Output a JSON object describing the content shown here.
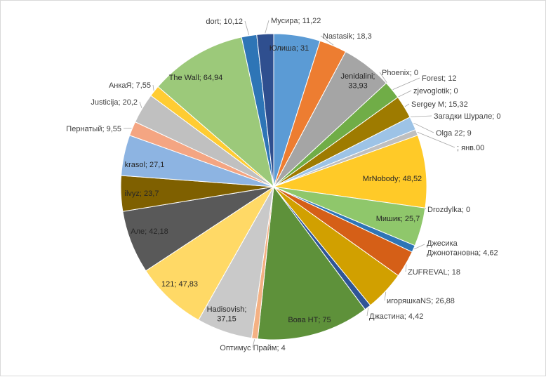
{
  "chart_data": {
    "type": "pie",
    "title": "",
    "start_angle_deg": 0,
    "direction": "clockwise",
    "slices": [
      {
        "name": "Юлиша",
        "value": 31,
        "label": "Юлиша; 31",
        "color": "#5b9bd5",
        "label_pos": "inside"
      },
      {
        "name": "Nastasik",
        "value": 18.3,
        "label": "Nastasik; 18,3",
        "color": "#ed7d31",
        "label_pos": "outside"
      },
      {
        "name": "Jenidalini",
        "value": 33.93,
        "label": "Jenidalini;\n33,93",
        "color": "#a5a5a5",
        "label_pos": "inside"
      },
      {
        "name": "Phoenix",
        "value": 0,
        "label": "Phoenix; 0",
        "color": "#ffc000",
        "label_pos": "outside"
      },
      {
        "name": "Forest",
        "value": 12,
        "label": "Forest; 12",
        "color": "#70ad47",
        "label_pos": "outside"
      },
      {
        "name": "zjevoglotik",
        "value": 0,
        "label": "zjevoglotik; 0",
        "color": "#4472c4",
        "label_pos": "outside"
      },
      {
        "name": "Sergey M",
        "value": 15.32,
        "label": "Sergey M; 15,32",
        "color": "#9e7b00",
        "label_pos": "outside"
      },
      {
        "name": "Загадки Шурале",
        "value": 0,
        "label": "Загадки Шурале; 0",
        "color": "#264478",
        "label_pos": "outside"
      },
      {
        "name": "Olga 22",
        "value": 9,
        "label": "Olga 22; 9",
        "color": "#9dc3e6",
        "label_pos": "outside"
      },
      {
        "name": "",
        "value": 4,
        "label": "; янв.00",
        "color": "#bfbfbf",
        "label_pos": "outside"
      },
      {
        "name": "MrNobody",
        "value": 48.52,
        "label": "MrNobody; 48,52",
        "color": "#ffca28",
        "label_pos": "inside"
      },
      {
        "name": "Drozdylka",
        "value": 0,
        "label": "Drozdylka; 0",
        "color": "#5b9bd5",
        "label_pos": "outside"
      },
      {
        "name": "Мишик",
        "value": 25.7,
        "label": "Мишик; 25,7",
        "color": "#8fc76b",
        "label_pos": "inside"
      },
      {
        "name": "Джесика Джонотановна",
        "value": 4.62,
        "label": "Джесика\nДжонотановна; 4,62",
        "color": "#2e75b6",
        "label_pos": "outside"
      },
      {
        "name": "ZUFREVAL",
        "value": 18,
        "label": "ZUFREVAL; 18",
        "color": "#d55f17",
        "label_pos": "outside"
      },
      {
        "name": "игоряшкаNS",
        "value": 26.88,
        "label": "игоряшкаNS; 26,88",
        "color": "#d1a000",
        "label_pos": "outside"
      },
      {
        "name": "Джастина",
        "value": 4.42,
        "label": "Джастина; 4,42",
        "color": "#2f5597",
        "label_pos": "outside"
      },
      {
        "name": "Вова НТ",
        "value": 75,
        "label": "Вова НТ; 75",
        "color": "#5e913a",
        "label_pos": "inside"
      },
      {
        "name": "Оптимус Прайм",
        "value": 4,
        "label": "Оптимус Прайм; 4",
        "color": "#f4b183",
        "label_pos": "outside"
      },
      {
        "name": "Hadisovish",
        "value": 37.15,
        "label": "Hadisovish;\n37,15",
        "color": "#c9c9c9",
        "label_pos": "inside"
      },
      {
        "name": "121",
        "value": 47.83,
        "label": "121; 47,83",
        "color": "#ffd966",
        "label_pos": "inside"
      },
      {
        "name": "Але",
        "value": 42.18,
        "label": "Але; 42,18",
        "color": "#595959",
        "label_pos": "inside"
      },
      {
        "name": "ilvyz",
        "value": 23.7,
        "label": "ilvyz; 23,7",
        "color": "#7f6000",
        "label_pos": "inside"
      },
      {
        "name": "krasol",
        "value": 27.1,
        "label": "krasol; 27,1",
        "color": "#8db4e2",
        "label_pos": "inside"
      },
      {
        "name": "Пернатый",
        "value": 9.55,
        "label": "Пернатый; 9,55",
        "color": "#f4a582",
        "label_pos": "outside"
      },
      {
        "name": "Justicija",
        "value": 20.2,
        "label": "Justicija; 20,2",
        "color": "#c0c0c0",
        "label_pos": "outside"
      },
      {
        "name": "АнкаЯ",
        "value": 7.55,
        "label": "АнкаЯ; 7,55",
        "color": "#ffcc33",
        "label_pos": "outside"
      },
      {
        "name": "The Wall",
        "value": 64.94,
        "label": "The Wall; 64,94",
        "color": "#9cc97a",
        "label_pos": "inside"
      },
      {
        "name": "dort",
        "value": 10.12,
        "label": "dort; 10,12",
        "color": "#2e75b6",
        "label_pos": "outside"
      },
      {
        "name": "Мусира",
        "value": 11.22,
        "label": "Мусира; 11,22",
        "color": "#2f4f8f",
        "label_pos": "outside"
      }
    ]
  }
}
